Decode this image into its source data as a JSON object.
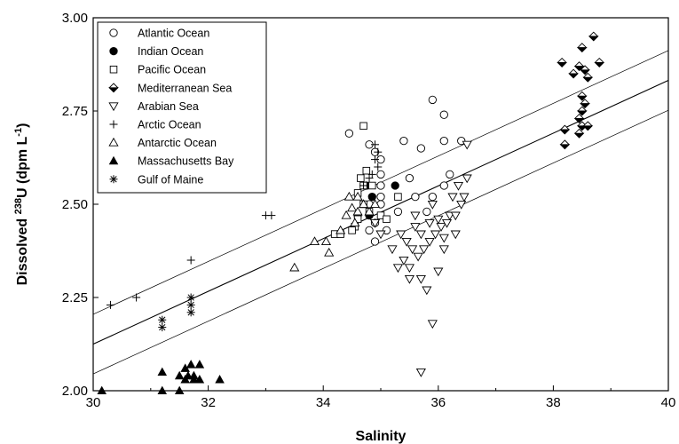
{
  "chart_data": {
    "type": "scatter",
    "xlabel": "Salinity",
    "ylabel": {
      "prefix": "Dissolved ",
      "superscript": "238",
      "middle": "U (dpm L",
      "superscript2": "-1",
      "suffix": ")"
    },
    "xlim": [
      30,
      40
    ],
    "ylim": [
      2.0,
      3.0
    ],
    "xticks": [
      "30",
      "32",
      "34",
      "36",
      "38",
      "40"
    ],
    "yticks": [
      "2.00",
      "2.25",
      "2.50",
      "2.75",
      "3.00"
    ],
    "legend_position": "top-left",
    "regression_lines": [
      {
        "points": [
          [
            30,
            2.125
          ],
          [
            40,
            2.832
          ]
        ]
      },
      {
        "points": [
          [
            30,
            2.045
          ],
          [
            40,
            2.752
          ]
        ]
      },
      {
        "points": [
          [
            30,
            2.205
          ],
          [
            40,
            2.912
          ]
        ]
      }
    ],
    "series": [
      {
        "name": "Atlantic Ocean",
        "marker": "open-circle",
        "points": [
          [
            34.45,
            2.69
          ],
          [
            34.8,
            2.66
          ],
          [
            34.9,
            2.64
          ],
          [
            35.0,
            2.62
          ],
          [
            35.0,
            2.58
          ],
          [
            35.4,
            2.67
          ],
          [
            35.7,
            2.65
          ],
          [
            35.9,
            2.78
          ],
          [
            36.1,
            2.74
          ],
          [
            36.1,
            2.67
          ],
          [
            36.4,
            2.67
          ],
          [
            36.2,
            2.58
          ],
          [
            35.5,
            2.57
          ],
          [
            35.0,
            2.55
          ],
          [
            35.0,
            2.5
          ],
          [
            34.6,
            2.47
          ],
          [
            34.9,
            2.45
          ],
          [
            35.1,
            2.43
          ],
          [
            35.3,
            2.48
          ],
          [
            34.8,
            2.5
          ],
          [
            35.6,
            2.52
          ],
          [
            35.9,
            2.52
          ],
          [
            36.1,
            2.55
          ],
          [
            34.9,
            2.4
          ],
          [
            34.8,
            2.43
          ],
          [
            35.0,
            2.52
          ],
          [
            35.8,
            2.48
          ]
        ]
      },
      {
        "name": "Indian Ocean",
        "marker": "filled-circle",
        "points": [
          [
            34.75,
            2.55
          ],
          [
            34.85,
            2.52
          ],
          [
            35.25,
            2.55
          ],
          [
            34.8,
            2.47
          ]
        ]
      },
      {
        "name": "Pacific Ocean",
        "marker": "open-square",
        "points": [
          [
            34.7,
            2.71
          ],
          [
            34.75,
            2.59
          ],
          [
            34.65,
            2.57
          ],
          [
            34.7,
            2.55
          ],
          [
            34.85,
            2.55
          ],
          [
            34.6,
            2.53
          ],
          [
            34.7,
            2.5
          ],
          [
            34.8,
            2.48
          ],
          [
            34.6,
            2.46
          ],
          [
            34.55,
            2.44
          ],
          [
            34.2,
            2.42
          ],
          [
            34.3,
            2.42
          ],
          [
            34.5,
            2.43
          ],
          [
            35.0,
            2.47
          ],
          [
            35.3,
            2.52
          ],
          [
            35.1,
            2.46
          ]
        ]
      },
      {
        "name": "Mediterranean Sea",
        "marker": "half-diamond",
        "points": [
          [
            38.15,
            2.88
          ],
          [
            38.45,
            2.87
          ],
          [
            38.7,
            2.95
          ],
          [
            38.5,
            2.92
          ],
          [
            38.8,
            2.88
          ],
          [
            38.35,
            2.85
          ],
          [
            38.55,
            2.86
          ],
          [
            38.6,
            2.84
          ],
          [
            38.5,
            2.79
          ],
          [
            38.55,
            2.77
          ],
          [
            38.5,
            2.75
          ],
          [
            38.45,
            2.73
          ],
          [
            38.2,
            2.7
          ],
          [
            38.5,
            2.71
          ],
          [
            38.6,
            2.71
          ],
          [
            38.2,
            2.66
          ],
          [
            38.45,
            2.69
          ]
        ]
      },
      {
        "name": "Arabian Sea",
        "marker": "open-triangle-down",
        "points": [
          [
            34.9,
            2.45
          ],
          [
            35.0,
            2.42
          ],
          [
            35.2,
            2.38
          ],
          [
            35.4,
            2.35
          ],
          [
            35.3,
            2.33
          ],
          [
            35.5,
            2.33
          ],
          [
            35.35,
            2.42
          ],
          [
            35.45,
            2.4
          ],
          [
            35.6,
            2.47
          ],
          [
            35.6,
            2.44
          ],
          [
            35.7,
            2.42
          ],
          [
            35.75,
            2.38
          ],
          [
            35.85,
            2.4
          ],
          [
            35.85,
            2.45
          ],
          [
            35.9,
            2.5
          ],
          [
            35.95,
            2.42
          ],
          [
            36.0,
            2.46
          ],
          [
            36.05,
            2.44
          ],
          [
            36.1,
            2.38
          ],
          [
            36.15,
            2.45
          ],
          [
            36.2,
            2.47
          ],
          [
            36.25,
            2.52
          ],
          [
            36.3,
            2.47
          ],
          [
            36.35,
            2.55
          ],
          [
            36.4,
            2.5
          ],
          [
            36.45,
            2.52
          ],
          [
            36.5,
            2.57
          ],
          [
            36.5,
            2.66
          ],
          [
            35.5,
            2.3
          ],
          [
            35.7,
            2.3
          ],
          [
            35.8,
            2.27
          ],
          [
            36.0,
            2.32
          ],
          [
            35.9,
            2.18
          ],
          [
            35.7,
            2.05
          ],
          [
            36.1,
            2.41
          ],
          [
            35.55,
            2.38
          ],
          [
            35.65,
            2.36
          ],
          [
            36.3,
            2.42
          ]
        ]
      },
      {
        "name": "Arctic Ocean",
        "marker": "plus",
        "points": [
          [
            30.3,
            2.23
          ],
          [
            30.75,
            2.25
          ],
          [
            31.7,
            2.35
          ],
          [
            33.0,
            2.47
          ],
          [
            33.1,
            2.47
          ],
          [
            34.9,
            2.66
          ],
          [
            34.95,
            2.64
          ],
          [
            34.9,
            2.62
          ],
          [
            34.95,
            2.6
          ],
          [
            34.85,
            2.58
          ],
          [
            34.8,
            2.57
          ],
          [
            34.7,
            2.55
          ]
        ]
      },
      {
        "name": "Antarctic Ocean",
        "marker": "open-triangle-up",
        "points": [
          [
            33.5,
            2.33
          ],
          [
            33.85,
            2.4
          ],
          [
            34.05,
            2.4
          ],
          [
            34.1,
            2.37
          ],
          [
            34.3,
            2.43
          ],
          [
            34.4,
            2.47
          ],
          [
            34.5,
            2.49
          ],
          [
            34.6,
            2.52
          ],
          [
            34.7,
            2.5
          ],
          [
            34.8,
            2.48
          ],
          [
            34.55,
            2.45
          ],
          [
            34.45,
            2.52
          ],
          [
            34.9,
            2.5
          ],
          [
            34.6,
            2.48
          ]
        ]
      },
      {
        "name": "Massachusetts Bay",
        "marker": "filled-triangle-up",
        "points": [
          [
            30.15,
            2.0
          ],
          [
            31.2,
            2.05
          ],
          [
            31.2,
            2.0
          ],
          [
            31.5,
            2.04
          ],
          [
            31.5,
            2.0
          ],
          [
            31.6,
            2.06
          ],
          [
            31.65,
            2.04
          ],
          [
            31.7,
            2.07
          ],
          [
            31.75,
            2.04
          ],
          [
            31.85,
            2.07
          ],
          [
            31.85,
            2.03
          ],
          [
            31.6,
            2.03
          ],
          [
            31.75,
            2.03
          ],
          [
            32.2,
            2.03
          ]
        ]
      },
      {
        "name": "Gulf of Maine",
        "marker": "asterisk",
        "points": [
          [
            31.2,
            2.19
          ],
          [
            31.2,
            2.17
          ],
          [
            31.7,
            2.25
          ],
          [
            31.7,
            2.23
          ],
          [
            31.7,
            2.21
          ]
        ]
      }
    ]
  }
}
